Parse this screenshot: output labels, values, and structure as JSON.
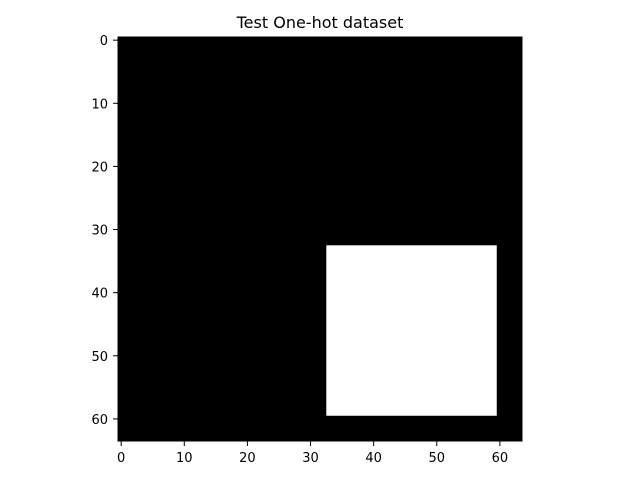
{
  "chart_data": {
    "type": "heatmap",
    "title": "Test One-hot dataset",
    "xlabel": "",
    "ylabel": "",
    "image_shape": [
      64,
      64
    ],
    "colormap": "gray",
    "background_value": 0,
    "background_color": "#000000",
    "regions": [
      {
        "value": 1,
        "color": "#ffffff",
        "x_range": [
          33,
          59
        ],
        "y_range": [
          33,
          59
        ]
      }
    ],
    "xlim": [
      -0.5,
      63.5
    ],
    "ylim": [
      63.5,
      -0.5
    ],
    "y_inverted": true,
    "x_ticks": [
      0,
      10,
      20,
      30,
      40,
      50,
      60
    ],
    "x_tick_labels": [
      "0",
      "10",
      "20",
      "30",
      "40",
      "50",
      "60"
    ],
    "y_ticks": [
      0,
      10,
      20,
      30,
      40,
      50,
      60
    ],
    "y_tick_labels": [
      "0",
      "10",
      "20",
      "30",
      "40",
      "50",
      "60"
    ],
    "grid": false
  }
}
